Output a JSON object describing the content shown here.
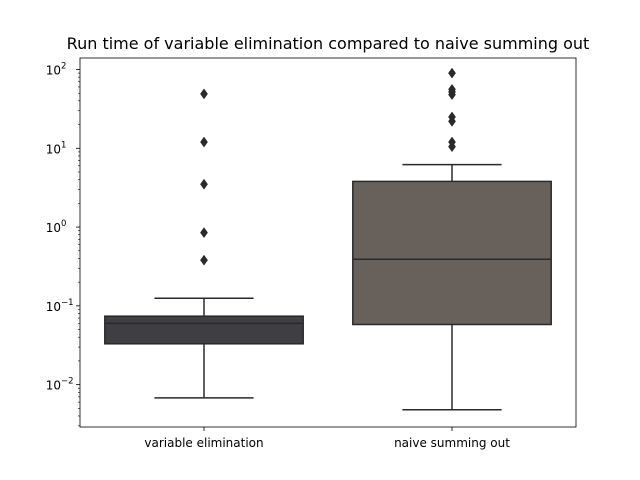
{
  "chart_data": {
    "type": "box",
    "title": "Run time of variable elimination compared to naive summing out",
    "xlabel": "",
    "ylabel": "",
    "categories": [
      "variable elimination",
      "naive summing out"
    ],
    "y_scale": "log",
    "ylim": [
      0.0029,
      140
    ],
    "y_ticks": [
      {
        "value": 0.01,
        "base": "10",
        "exp": "−2"
      },
      {
        "value": 0.1,
        "base": "10",
        "exp": "−1"
      },
      {
        "value": 1,
        "base": "10",
        "exp": "0"
      },
      {
        "value": 10,
        "base": "10",
        "exp": "1"
      },
      {
        "value": 100,
        "base": "10",
        "exp": "2"
      }
    ],
    "grid": false,
    "legend": "none",
    "series": [
      {
        "category": "variable elimination",
        "color": "#3f3f43",
        "whisker_low": 0.0068,
        "q1": 0.033,
        "median": 0.06,
        "q3": 0.074,
        "whisker_high": 0.125,
        "outliers": [
          0.38,
          0.85,
          3.5,
          12,
          49
        ]
      },
      {
        "category": "naive summing out",
        "color": "#67605b",
        "whisker_low": 0.0048,
        "q1": 0.058,
        "median": 0.39,
        "q3": 3.8,
        "whisker_high": 6.2,
        "outliers": [
          10.5,
          12,
          22,
          25,
          48,
          52,
          56,
          90
        ]
      }
    ]
  }
}
